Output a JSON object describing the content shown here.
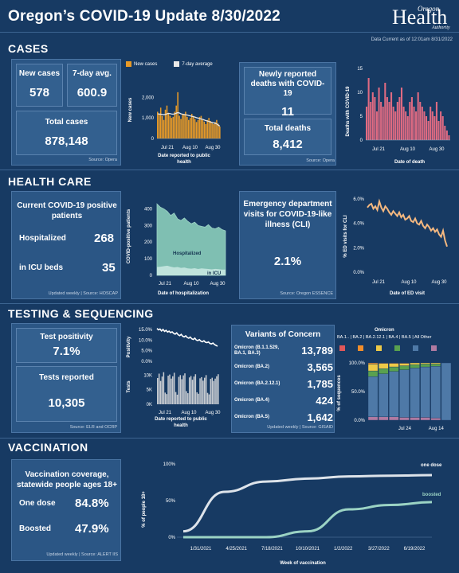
{
  "header": {
    "title": "Oregon’s COVID-19 Update 8/30/2022",
    "logo_top": "Oregon",
    "logo_main": "Health",
    "logo_sub": "Authority",
    "data_current": "Data Current as of 12:01am 8/31/2022"
  },
  "sections": {
    "cases": "CASES",
    "health_care": "HEALTH CARE",
    "testing": "TESTING & SEQUENCING",
    "vaccination": "VACCINATION"
  },
  "cases": {
    "new_label": "New cases",
    "new_value": "578",
    "avg_label": "7-day avg.",
    "avg_value": "600.9",
    "total_label": "Total cases",
    "total_value": "878,148",
    "source": "Source: Opera",
    "legend_new": "New cases",
    "legend_avg": "7-day average",
    "chart_ylabel": "New cases",
    "chart_xlabel": "Date reported to public health",
    "yticks": [
      "2,000",
      "1,000",
      "0"
    ],
    "xticks": [
      "Jul 21",
      "Aug 10",
      "Aug 30"
    ],
    "deaths_label": "Newly reported deaths with COVID-19",
    "deaths_value": "11",
    "total_deaths_label": "Total deaths",
    "total_deaths_value": "8,412",
    "deaths_source": "Source: Opera",
    "deaths_ylabel": "Deaths with COVID-19",
    "deaths_xlabel": "Date of death",
    "deaths_yticks": [
      "15",
      "10",
      "5",
      "0"
    ],
    "deaths_xticks": [
      "Jul 21",
      "Aug 10",
      "Aug 30"
    ]
  },
  "health": {
    "patients_label": "Current COVID-19 positive patients",
    "hosp_label": "Hospitalized",
    "hosp_value": "268",
    "icu_label": "in ICU beds",
    "icu_value": "35",
    "source": "Updated weekly | Source: HOSCAP",
    "chart_ylabel": "COVID-positive patients",
    "chart_xlabel": "Date of hospitalization",
    "yticks": [
      "400",
      "300",
      "200",
      "100",
      "0"
    ],
    "xticks": [
      "Jul 21",
      "Aug 10",
      "Aug 30"
    ],
    "area_hosp": "Hospitalized",
    "area_icu": "in ICU",
    "ed_label": "Emergency department visits for COVID-19-like illness (CLI)",
    "ed_value": "2.1%",
    "ed_source": "Source: Oregon ESSENCE",
    "ed_ylabel": "% ED visits for CLI",
    "ed_xlabel": "Date of ED visit",
    "ed_yticks": [
      "6.0%",
      "4.0%",
      "2.0%",
      "0.0%"
    ],
    "ed_xticks": [
      "Jul 21",
      "Aug 10",
      "Aug 30"
    ]
  },
  "testing": {
    "positivity_label": "Test positivity",
    "positivity_value": "7.1%",
    "reported_label": "Tests reported",
    "reported_value": "10,305",
    "source": "Source: ELR and OCRP",
    "pos_ylabel": "Positivity",
    "pos_yticks": [
      "15.0%",
      "10.0%",
      "5.0%",
      "0.0%"
    ],
    "tests_ylabel": "Tests",
    "tests_yticks": [
      "10K",
      "5K",
      "0K"
    ],
    "xticks": [
      "Jul 21",
      "Aug 10",
      "Aug 30"
    ],
    "xlabel": "Date reported to public health",
    "variants_title": "Variants of Concern",
    "variants": [
      {
        "name": "Omicron (B.1.1.529, BA.1, BA.3)",
        "value": "13,789"
      },
      {
        "name": "Omicron (BA.2)",
        "value": "3,565"
      },
      {
        "name": "Omicron (BA.2.12.1)",
        "value": "1,785"
      },
      {
        "name": "Omicron (BA.4)",
        "value": "424"
      },
      {
        "name": "Omicron (BA.5)",
        "value": "1,642"
      }
    ],
    "variants_source": "Updated weekly | Source: GISAID",
    "omicron_title": "Omicron",
    "omicron_legend": "BA.1.. | BA.2 | BA.2.12.1 | BA.4 | BA.5 | All Other",
    "seq_ylabel": "% of sequences",
    "seq_yticks": [
      "100.0%",
      "50.0%",
      "0.0%"
    ],
    "seq_xticks": [
      "Jul 24",
      "Aug 14"
    ],
    "colors": {
      "ba1": "#e15759",
      "ba2": "#f28e2b",
      "ba2121": "#edc948",
      "ba4": "#59a14f",
      "ba5": "#4e79a7",
      "other": "#b07aa1"
    }
  },
  "vaccination": {
    "coverage_label": "Vaccination coverage, statewide people ages 18+",
    "one_label": "One dose",
    "one_value": "84.8%",
    "boost_label": "Boosted",
    "boost_value": "47.9%",
    "source": "Updated weekly | Source: ALERT IIS",
    "ylabel": "% of people 18+",
    "yticks": [
      "100%",
      "50%",
      "0%"
    ],
    "xticks": [
      "1/31/2021",
      "4/25/2021",
      "7/18/2021",
      "10/10/2021",
      "1/2/2022",
      "3/27/2022",
      "6/19/2022"
    ],
    "xlabel": "Week of vaccination",
    "line_one": "one dose",
    "line_boost": "boosted"
  },
  "chart_data": [
    {
      "type": "bar",
      "title": "",
      "xlabel": "Date reported to public health",
      "ylabel": "New cases",
      "ylim": [
        0,
        2400
      ],
      "x": [
        "Jul 21",
        "",
        "",
        "",
        "",
        "",
        "",
        "",
        "",
        "",
        "",
        "",
        "",
        "",
        "",
        "",
        "",
        "",
        "",
        "",
        "Aug 10",
        "",
        "",
        "",
        "",
        "",
        "",
        "",
        "",
        "",
        "",
        "",
        "",
        "",
        "",
        "",
        "",
        "",
        "",
        "",
        "Aug 30"
      ],
      "series": [
        {
          "name": "New cases",
          "values": [
            1300,
            1200,
            1500,
            1100,
            900,
            1400,
            1600,
            1250,
            1100,
            1000,
            1050,
            1300,
            1600,
            2250,
            1100,
            950,
            1150,
            1200,
            1300,
            1050,
            900,
            1000,
            1200,
            1100,
            950,
            800,
            900,
            1050,
            1100,
            900,
            820,
            700,
            900,
            1000,
            850,
            760,
            700,
            800,
            900,
            720,
            578
          ]
        },
        {
          "name": "7-day average",
          "values": [
            1200,
            1190,
            1180,
            1170,
            1160,
            1170,
            1200,
            1220,
            1210,
            1190,
            1180,
            1200,
            1230,
            1260,
            1240,
            1200,
            1180,
            1160,
            1150,
            1140,
            1120,
            1100,
            1080,
            1060,
            1040,
            1010,
            990,
            970,
            950,
            930,
            900,
            870,
            850,
            830,
            800,
            780,
            760,
            740,
            710,
            650,
            601
          ]
        }
      ]
    },
    {
      "type": "bar",
      "title": "",
      "xlabel": "Date of death",
      "ylabel": "Deaths with COVID-19",
      "ylim": [
        0,
        15
      ],
      "x": [
        "Jul 21",
        "",
        "",
        "",
        "",
        "",
        "",
        "",
        "",
        "",
        "",
        "",
        "",
        "",
        "",
        "",
        "",
        "",
        "",
        "",
        "Aug 10",
        "",
        "",
        "",
        "",
        "",
        "",
        "",
        "",
        "",
        "",
        "",
        "",
        "",
        "",
        "",
        "",
        "",
        "",
        "",
        "Aug 30"
      ],
      "series": [
        {
          "name": "Deaths",
          "values": [
            7,
            13,
            8,
            10,
            9,
            6,
            11,
            8,
            7,
            12,
            9,
            8,
            10,
            7,
            6,
            8,
            9,
            11,
            7,
            6,
            5,
            8,
            9,
            7,
            6,
            10,
            8,
            7,
            6,
            5,
            4,
            7,
            6,
            5,
            8,
            4,
            6,
            5,
            3,
            2,
            1
          ]
        }
      ]
    },
    {
      "type": "area",
      "title": "",
      "xlabel": "Date of hospitalization",
      "ylabel": "COVID-positive patients",
      "ylim": [
        0,
        450
      ],
      "x": [
        "Jul 21",
        "",
        "",
        "",
        "",
        "",
        "",
        "",
        "",
        "",
        "Aug 10",
        "",
        "",
        "",
        "",
        "",
        "",
        "",
        "",
        "",
        "Aug 30"
      ],
      "series": [
        {
          "name": "Hospitalized",
          "values": [
            430,
            410,
            400,
            385,
            360,
            375,
            340,
            330,
            345,
            325,
            310,
            320,
            300,
            295,
            290,
            305,
            285,
            280,
            290,
            275,
            268
          ]
        },
        {
          "name": "in ICU",
          "values": [
            50,
            52,
            55,
            58,
            52,
            48,
            50,
            45,
            47,
            42,
            40,
            43,
            38,
            42,
            40,
            38,
            36,
            39,
            37,
            35,
            35
          ]
        }
      ]
    },
    {
      "type": "line",
      "title": "",
      "xlabel": "Date of ED visit",
      "ylabel": "% ED visits for CLI",
      "ylim": [
        0,
        6.5
      ],
      "x": [
        "Jul 21",
        "",
        "",
        "",
        "",
        "",
        "",
        "",
        "",
        "",
        "",
        "",
        "",
        "",
        "",
        "",
        "",
        "",
        "",
        "",
        "Aug 10",
        "",
        "",
        "",
        "",
        "",
        "",
        "",
        "",
        "",
        "",
        "",
        "",
        "",
        "",
        "",
        "",
        "",
        "",
        "",
        "Aug 30"
      ],
      "series": [
        {
          "name": "% ED visits",
          "values": [
            5.3,
            5.5,
            5.6,
            5.2,
            5.4,
            5.1,
            5.8,
            5.3,
            5.0,
            5.4,
            5.2,
            4.9,
            4.7,
            5.0,
            4.8,
            4.6,
            4.9,
            4.5,
            4.7,
            4.3,
            4.4,
            4.6,
            4.2,
            4.1,
            4.4,
            4.0,
            3.9,
            4.2,
            3.8,
            3.6,
            3.9,
            3.7,
            3.4,
            3.6,
            3.3,
            3.5,
            3.1,
            2.9,
            3.4,
            2.6,
            2.1
          ]
        }
      ]
    },
    {
      "type": "line",
      "title": "",
      "xlabel": "",
      "ylabel": "Positivity",
      "ylim": [
        0,
        15
      ],
      "x": [
        "Jul 21",
        "",
        "",
        "",
        "",
        "",
        "",
        "",
        "",
        "",
        "",
        "",
        "",
        "",
        "",
        "",
        "",
        "",
        "",
        "",
        "Aug 10",
        "",
        "",
        "",
        "",
        "",
        "",
        "",
        "",
        "",
        "",
        "",
        "",
        "",
        "",
        "",
        "",
        "",
        "",
        "",
        "Aug 30"
      ],
      "series": [
        {
          "name": "Positivity",
          "values": [
            15.5,
            14.8,
            15.2,
            14.3,
            15.0,
            14.1,
            14.6,
            13.8,
            14.2,
            13.5,
            13.9,
            13.2,
            12.8,
            13.4,
            12.5,
            12.1,
            12.7,
            11.8,
            11.5,
            12.0,
            11.2,
            10.9,
            11.4,
            10.6,
            10.3,
            10.9,
            10.0,
            9.8,
            10.2,
            9.5,
            9.2,
            9.7,
            9.0,
            8.8,
            9.1,
            8.4,
            8.2,
            8.6,
            7.9,
            7.5,
            7.1
          ]
        }
      ]
    },
    {
      "type": "bar",
      "title": "",
      "xlabel": "Date reported to public health",
      "ylabel": "Tests",
      "ylim": [
        0,
        12000
      ],
      "x": [
        "Jul 21",
        "",
        "",
        "",
        "",
        "",
        "",
        "",
        "",
        "",
        "",
        "",
        "",
        "",
        "",
        "",
        "",
        "",
        "",
        "",
        "Aug 10",
        "",
        "",
        "",
        "",
        "",
        "",
        "",
        "",
        "",
        "",
        "",
        "",
        "",
        "",
        "",
        "",
        "",
        "",
        "",
        "Aug 30"
      ],
      "series": [
        {
          "name": "Tests",
          "values": [
            9000,
            10500,
            8000,
            9500,
            11000,
            4000,
            3500,
            9800,
            10200,
            8800,
            9600,
            10800,
            4200,
            3300,
            9400,
            10000,
            8600,
            9900,
            10600,
            4500,
            3800,
            9200,
            9700,
            8400,
            9500,
            10300,
            4100,
            3600,
            8900,
            9300,
            8100,
            9100,
            10000,
            3900,
            3400,
            8700,
            9100,
            8000,
            8800,
            9600,
            10305
          ]
        }
      ]
    },
    {
      "type": "bar",
      "title": "",
      "xlabel": "",
      "ylabel": "% of sequences",
      "ylim": [
        0,
        100
      ],
      "x": [
        "",
        "",
        "",
        "Jul 24",
        "",
        "",
        "Aug 14",
        ""
      ],
      "series": [
        {
          "name": "BA.1..",
          "values": [
            0,
            0,
            0,
            0,
            0,
            0,
            0,
            0
          ]
        },
        {
          "name": "BA.2",
          "values": [
            2,
            1,
            1,
            1,
            0,
            0,
            0,
            0
          ]
        },
        {
          "name": "BA.2.12.1",
          "values": [
            12,
            9,
            6,
            4,
            3,
            2,
            2,
            0
          ]
        },
        {
          "name": "BA.4",
          "values": [
            10,
            9,
            8,
            7,
            6,
            5,
            4,
            0
          ]
        },
        {
          "name": "BA.5",
          "values": [
            70,
            75,
            79,
            83,
            86,
            88,
            90,
            100
          ]
        },
        {
          "name": "All Other",
          "values": [
            6,
            6,
            6,
            5,
            5,
            5,
            4,
            0
          ]
        }
      ]
    },
    {
      "type": "line",
      "title": "",
      "xlabel": "Week of vaccination",
      "ylabel": "% of people 18+",
      "ylim": [
        0,
        100
      ],
      "x": [
        "1/31/2021",
        "4/25/2021",
        "7/18/2021",
        "10/10/2021",
        "1/2/2022",
        "3/27/2022",
        "6/19/2022"
      ],
      "series": [
        {
          "name": "one dose",
          "values": [
            8,
            62,
            76,
            80,
            83,
            84,
            84.8
          ]
        },
        {
          "name": "boosted",
          "values": [
            0,
            0,
            0,
            8,
            38,
            44,
            47.9
          ]
        }
      ]
    }
  ]
}
